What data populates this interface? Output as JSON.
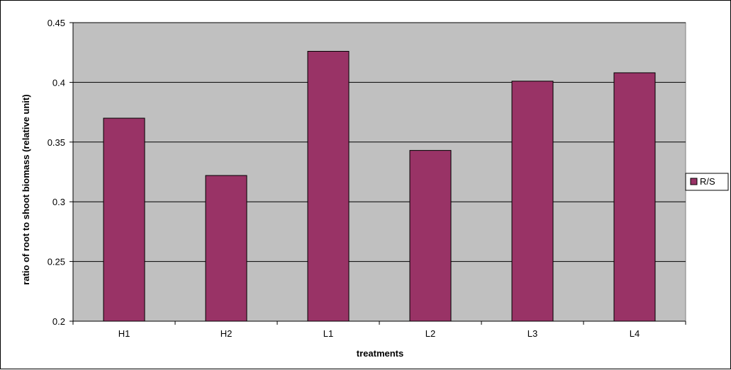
{
  "chart_data": {
    "type": "bar",
    "categories": [
      "H1",
      "H2",
      "L1",
      "L2",
      "L3",
      "L4"
    ],
    "series": [
      {
        "name": "R/S",
        "values": [
          0.37,
          0.322,
          0.426,
          0.343,
          0.401,
          0.408
        ]
      }
    ],
    "title": "",
    "xlabel": "treatments",
    "ylabel": "ratio of root to shoot biomass (relative unit)",
    "ylim": [
      0.2,
      0.45
    ],
    "yticks": [
      0.2,
      0.25,
      0.3,
      0.35,
      0.4,
      0.45
    ],
    "ytick_labels": [
      "0.2",
      "0.25",
      "0.3",
      "0.35",
      "0.4",
      "0.45"
    ],
    "grid": "horizontal",
    "legend_position": "right"
  },
  "colors": {
    "bar_fill": "#993366",
    "plot_background": "#c0c0c0",
    "gridline": "#000000"
  }
}
